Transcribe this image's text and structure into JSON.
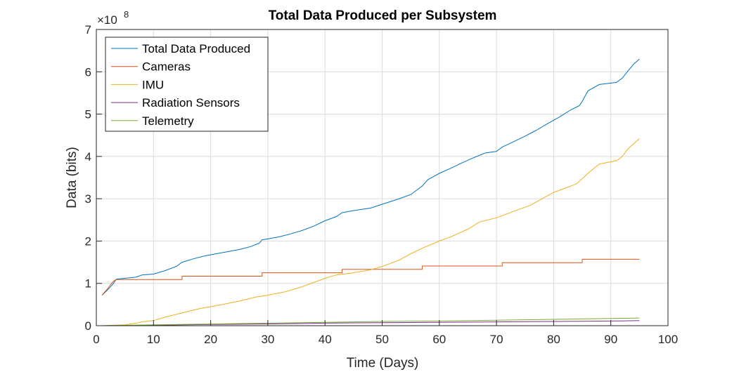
{
  "chart_data": {
    "type": "line",
    "title": "Total Data Produced per Subsystem",
    "xlabel": "Time (Days)",
    "ylabel": "Data (bits)",
    "y_exponent_label": "×10",
    "y_exponent_power": "8",
    "xlim": [
      0,
      100
    ],
    "ylim": [
      0,
      7
    ],
    "y_units_multiplier": 100000000,
    "xticks": [
      0,
      10,
      20,
      30,
      40,
      50,
      60,
      70,
      80,
      90,
      100
    ],
    "yticks": [
      0,
      1,
      2,
      3,
      4,
      5,
      6,
      7
    ],
    "grid": true,
    "legend_position": "top-left",
    "series": [
      {
        "name": "Total Data Produced",
        "color": "#0072BD",
        "x": [
          1,
          2,
          3,
          3.5,
          5,
          7,
          8,
          10,
          12,
          14,
          15,
          17,
          19,
          21,
          23,
          25,
          27,
          28.5,
          29,
          30,
          32,
          34,
          36,
          38,
          40,
          42,
          43,
          45,
          48,
          50,
          53,
          55,
          57,
          58,
          60,
          62,
          64,
          66,
          68,
          70,
          71,
          73,
          75,
          77,
          79,
          81,
          83,
          84.5,
          85,
          86,
          88,
          91,
          92,
          93,
          94,
          95
        ],
        "y": [
          0.72,
          0.85,
          1.0,
          1.1,
          1.12,
          1.15,
          1.2,
          1.22,
          1.3,
          1.4,
          1.5,
          1.58,
          1.65,
          1.7,
          1.75,
          1.8,
          1.87,
          1.95,
          2.03,
          2.05,
          2.1,
          2.17,
          2.25,
          2.35,
          2.48,
          2.58,
          2.67,
          2.72,
          2.78,
          2.87,
          3.0,
          3.1,
          3.3,
          3.45,
          3.6,
          3.72,
          3.85,
          3.97,
          4.08,
          4.12,
          4.22,
          4.35,
          4.48,
          4.62,
          4.78,
          4.93,
          5.1,
          5.2,
          5.3,
          5.55,
          5.7,
          5.75,
          5.85,
          6.02,
          6.18,
          6.3
        ]
      },
      {
        "name": "Cameras",
        "color": "#D95319",
        "x": [
          1,
          1.5,
          2,
          2.5,
          3,
          3.5,
          15,
          15,
          29,
          29,
          43,
          43,
          57,
          57,
          71,
          71,
          85,
          85,
          95
        ],
        "y": [
          0.72,
          0.8,
          0.88,
          0.97,
          1.05,
          1.09,
          1.09,
          1.17,
          1.17,
          1.25,
          1.25,
          1.33,
          1.33,
          1.41,
          1.41,
          1.49,
          1.49,
          1.57,
          1.57
        ]
      },
      {
        "name": "IMU",
        "color": "#EDB120",
        "x": [
          1,
          5,
          7,
          8,
          10,
          12,
          15,
          18,
          20,
          22,
          25,
          28,
          30,
          33,
          36,
          38,
          40,
          42,
          45,
          48,
          50,
          53,
          55,
          57,
          60,
          62,
          65,
          67,
          70,
          72,
          74,
          76,
          78,
          80,
          82,
          84,
          86,
          88,
          91,
          92,
          93,
          95
        ],
        "y": [
          0.0,
          0.02,
          0.06,
          0.09,
          0.12,
          0.2,
          0.3,
          0.4,
          0.45,
          0.5,
          0.58,
          0.68,
          0.72,
          0.8,
          0.92,
          1.02,
          1.12,
          1.2,
          1.25,
          1.32,
          1.4,
          1.55,
          1.7,
          1.83,
          2.0,
          2.1,
          2.28,
          2.45,
          2.55,
          2.65,
          2.75,
          2.85,
          3.0,
          3.15,
          3.25,
          3.35,
          3.6,
          3.82,
          3.9,
          4.0,
          4.18,
          4.42
        ]
      },
      {
        "name": "Radiation Sensors",
        "color": "#7E2F8E",
        "x": [
          1,
          10,
          20,
          30,
          40,
          50,
          60,
          70,
          80,
          90,
          95
        ],
        "y": [
          0.0,
          0.01,
          0.03,
          0.04,
          0.06,
          0.07,
          0.08,
          0.09,
          0.1,
          0.11,
          0.12
        ]
      },
      {
        "name": "Telemetry",
        "color": "#77AC30",
        "x": [
          1,
          10,
          20,
          30,
          40,
          50,
          60,
          70,
          80,
          90,
          95
        ],
        "y": [
          0.0,
          0.02,
          0.04,
          0.06,
          0.08,
          0.1,
          0.11,
          0.13,
          0.15,
          0.17,
          0.18
        ]
      }
    ]
  }
}
